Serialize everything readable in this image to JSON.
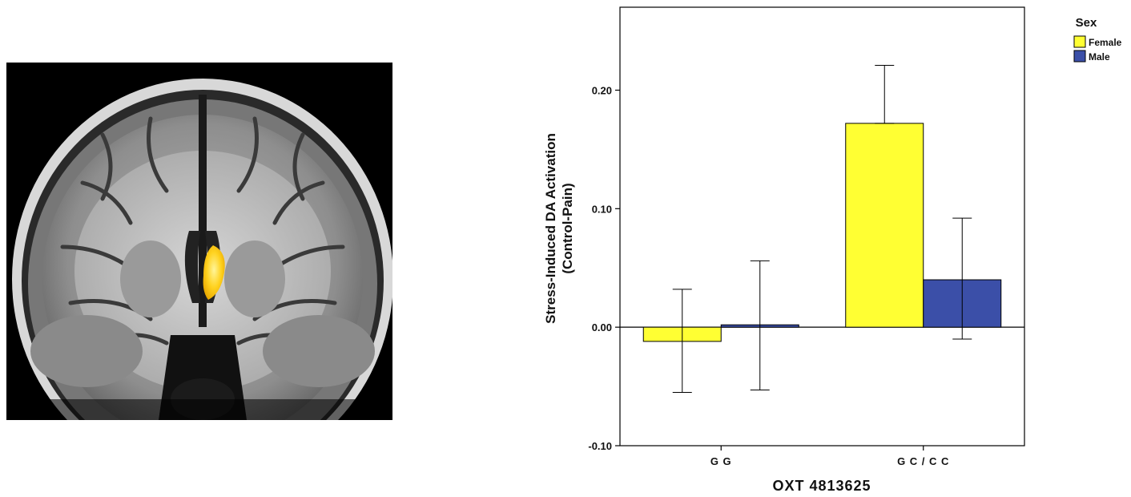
{
  "brain_image": {
    "description_icon": "mri-coronal-brain-slice",
    "highlight_color": "#f5c400"
  },
  "chart_data": {
    "type": "bar",
    "xlabel": "OXT 4813625",
    "ylabel_line1": "Stress-Induced DA Activation",
    "ylabel_line2": "(Control-Pain)",
    "categories": [
      "G G",
      "G C / C C"
    ],
    "ylim": [
      -0.1,
      0.27
    ],
    "yticks": [
      -0.1,
      0.0,
      0.1,
      0.2
    ],
    "ytick_labels": [
      "-0.10",
      "0.00",
      "0.10",
      "0.20"
    ],
    "grid": false,
    "legend": {
      "title": "Sex",
      "placement": "top-right",
      "entries": [
        "Female",
        "Male"
      ]
    },
    "series": [
      {
        "name": "Female",
        "color": "#ffff33",
        "values": [
          -0.012,
          0.172
        ],
        "err_low": [
          -0.055,
          0.172
        ],
        "err_high": [
          0.032,
          0.221
        ]
      },
      {
        "name": "Male",
        "color": "#3b4fa8",
        "values": [
          0.002,
          0.04
        ],
        "err_low": [
          -0.053,
          -0.01
        ],
        "err_high": [
          0.056,
          0.092
        ]
      }
    ]
  }
}
